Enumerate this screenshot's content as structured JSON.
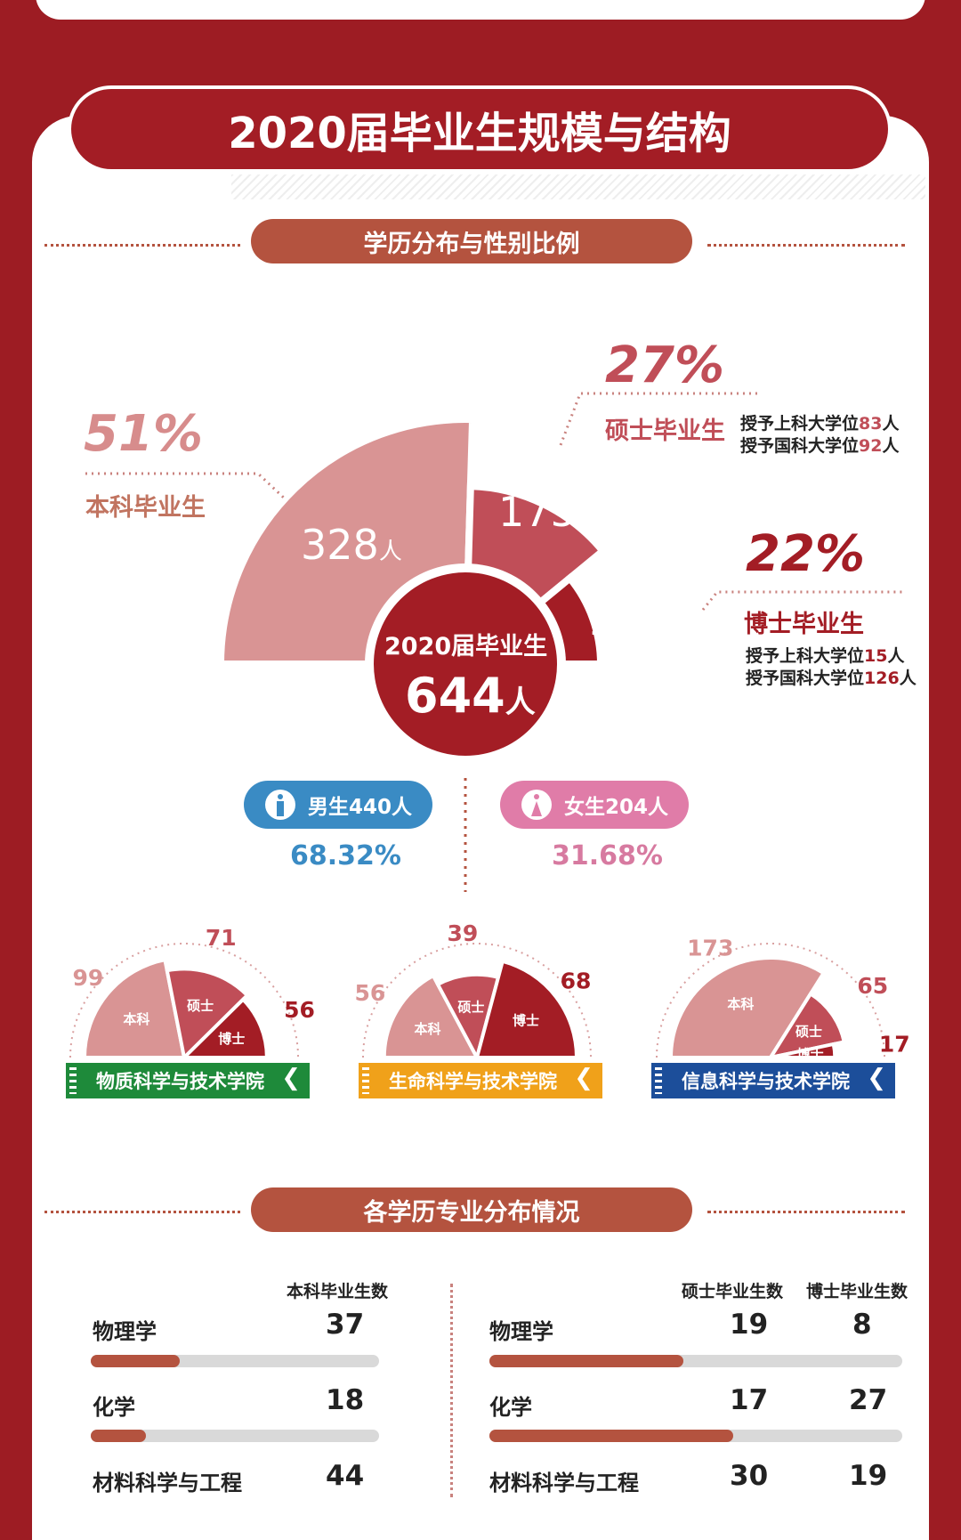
{
  "main": {
    "title": "2020届毕业生规模与结构",
    "section1": "学历分布与性别比例",
    "section2": "各学历专业分布情况"
  },
  "summary": {
    "center_line1": "2020届毕业生",
    "center_number": "644",
    "center_unit": "人",
    "unit": "人",
    "undergrad": {
      "pct": "51%",
      "label": "本科毕业生",
      "count": "328"
    },
    "master": {
      "pct": "27%",
      "label": "硕士毕业生",
      "count": "175",
      "line1": "授予上科大学位",
      "num1": "83",
      "line2": "授予国科大学位",
      "num2": "92",
      "unit": "人"
    },
    "phd": {
      "pct": "22%",
      "label": "博士毕业生",
      "count": "141",
      "line1": "授予上科大学位",
      "num1": "15",
      "line2": "授予国科大学位",
      "num2": "126",
      "unit": "人"
    }
  },
  "gender": {
    "male_label": "男生440人",
    "male_pct": "68.32%",
    "female_label": "女生204人",
    "female_pct": "31.68%",
    "colors": {
      "male": "#3a8bc4",
      "female": "#e07ca8"
    }
  },
  "schools": [
    {
      "name": "物质科学与技术学院",
      "color": "#1e8a3a",
      "labels": [
        "本科",
        "硕士",
        "博士"
      ],
      "values": [
        99,
        71,
        56
      ]
    },
    {
      "name": "生命科学与技术学院",
      "color": "#f0a11a",
      "labels": [
        "本科",
        "硕士",
        "博士"
      ],
      "values": [
        56,
        39,
        68
      ]
    },
    {
      "name": "信息科学与技术学院",
      "color": "#1c4e9a",
      "labels": [
        "本科",
        "硕士",
        "博士"
      ],
      "values": [
        173,
        65,
        17
      ]
    }
  ],
  "majors": {
    "undergrad_header": "本科毕业生数",
    "master_header": "硕士毕业生数",
    "phd_header": "博士毕业生数",
    "left": [
      {
        "name": "物理学",
        "value": "37",
        "fill": 0.31
      },
      {
        "name": "化学",
        "value": "18",
        "fill": 0.19
      },
      {
        "name": "材料科学与工程",
        "value": "44"
      }
    ],
    "right": [
      {
        "name": "物理学",
        "master": "19",
        "phd": "8",
        "fill": 0.47
      },
      {
        "name": "化学",
        "master": "17",
        "phd": "27",
        "fill": 0.59
      },
      {
        "name": "材料科学与工程",
        "master": "30",
        "phd": "19"
      }
    ]
  },
  "chart_data": [
    {
      "type": "pie",
      "categories": [
        "本科毕业生",
        "硕士毕业生",
        "博士毕业生"
      ],
      "values": [
        328,
        175,
        141
      ],
      "percentages": [
        51,
        27,
        22
      ],
      "colors": [
        "#d99494",
        "#c04e58",
        "#a31d25"
      ]
    },
    {
      "type": "pie",
      "title": "物质科学与技术学院",
      "categories": [
        "本科",
        "硕士",
        "博士"
      ],
      "values": [
        99,
        71,
        56
      ]
    },
    {
      "type": "pie",
      "title": "生命科学与技术学院",
      "categories": [
        "本科",
        "硕士",
        "博士"
      ],
      "values": [
        56,
        39,
        68
      ]
    },
    {
      "type": "pie",
      "title": "信息科学与技术学院",
      "categories": [
        "本科",
        "硕士",
        "博士"
      ],
      "values": [
        173,
        65,
        17
      ]
    }
  ]
}
